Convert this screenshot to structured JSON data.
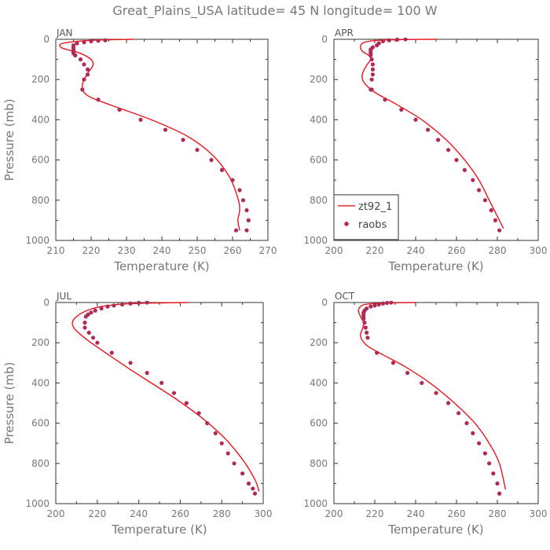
{
  "figure_title": "Great_Plains_USA   latitude= 45 N longitude= 100 W",
  "legend": {
    "line_label": "zt92_1",
    "dot_label": "raobs"
  },
  "colors": {
    "model": "#e8161c",
    "obs": "#b02a56"
  },
  "chart_data": [
    {
      "type": "line",
      "panel": "JAN",
      "xlabel": "Temperature (K)",
      "ylabel": "Pressure (mb)",
      "xlim": [
        210,
        270
      ],
      "ylim": [
        1000,
        0
      ],
      "xticks": [
        210,
        220,
        230,
        240,
        250,
        260,
        270
      ],
      "yticks": [
        0,
        200,
        400,
        600,
        800,
        1000
      ],
      "series": [
        {
          "name": "zt92_1",
          "kind": "line",
          "x": [
            232,
            220,
            212,
            211.5,
            214,
            217,
            220,
            220.5,
            219,
            217.5,
            219,
            226,
            237,
            247,
            254,
            259,
            261.5,
            262,
            261.5,
            262
          ],
          "y": [
            0,
            5,
            20,
            40,
            55,
            70,
            100,
            130,
            170,
            230,
            280,
            330,
            400,
            480,
            570,
            680,
            790,
            850,
            900,
            950
          ]
        },
        {
          "name": "raobs",
          "kind": "scatter",
          "x": [
            224,
            222,
            220,
            218,
            216,
            215,
            215,
            215,
            215,
            215,
            215.5,
            217,
            218,
            219,
            219,
            218,
            217.5,
            222,
            228,
            234,
            241,
            246,
            250,
            254,
            257,
            260,
            262,
            263,
            264,
            264.5,
            264,
            261
          ],
          "y": [
            5,
            7,
            10,
            15,
            20,
            30,
            40,
            50,
            60,
            70,
            80,
            100,
            125,
            150,
            175,
            200,
            250,
            300,
            350,
            400,
            450,
            500,
            550,
            600,
            650,
            700,
            750,
            800,
            850,
            900,
            950,
            950
          ]
        }
      ]
    },
    {
      "type": "line",
      "panel": "APR",
      "xlabel": "Temperature (K)",
      "ylabel": "",
      "xlim": [
        200,
        300
      ],
      "ylim": [
        1000,
        0
      ],
      "xticks": [
        200,
        220,
        240,
        260,
        280,
        300
      ],
      "yticks": [
        0,
        200,
        400,
        600,
        800,
        1000
      ],
      "series": [
        {
          "name": "zt92_1",
          "kind": "line",
          "x": [
            250,
            230,
            222,
            217,
            214,
            213,
            214,
            217,
            218,
            216,
            214,
            214,
            216,
            221,
            230,
            243,
            255,
            264,
            271,
            276,
            280,
            283
          ],
          "y": [
            0,
            2,
            5,
            10,
            20,
            40,
            60,
            80,
            100,
            130,
            170,
            200,
            230,
            270,
            320,
            400,
            500,
            600,
            700,
            800,
            880,
            940
          ]
        },
        {
          "name": "raobs",
          "kind": "scatter",
          "x": [
            235,
            231,
            227,
            224,
            222,
            221,
            219,
            218,
            218,
            218,
            218,
            218.5,
            219,
            219,
            219,
            218.5,
            218,
            218.5,
            225,
            233,
            240,
            246,
            251,
            256,
            260,
            264,
            268,
            271,
            274,
            277,
            279,
            281
          ],
          "y": [
            0,
            2,
            5,
            10,
            20,
            30,
            40,
            50,
            60,
            70,
            80,
            100,
            125,
            150,
            175,
            200,
            250,
            250,
            300,
            350,
            400,
            450,
            500,
            550,
            600,
            650,
            700,
            750,
            800,
            850,
            900,
            950
          ]
        }
      ]
    },
    {
      "type": "line",
      "panel": "JUL",
      "xlabel": "Temperature (K)",
      "ylabel": "Pressure (mb)",
      "xlim": [
        200,
        300
      ],
      "ylim": [
        1000,
        0
      ],
      "xticks": [
        200,
        220,
        240,
        260,
        280,
        300
      ],
      "yticks": [
        0,
        200,
        400,
        600,
        800,
        1000
      ],
      "series": [
        {
          "name": "zt92_1",
          "kind": "line",
          "x": [
            264,
            245,
            232,
            222,
            215,
            210,
            208,
            209,
            212,
            217,
            224,
            234,
            246,
            258,
            270,
            281,
            290,
            296,
            298
          ],
          "y": [
            0,
            3,
            8,
            20,
            40,
            70,
            100,
            130,
            160,
            200,
            250,
            320,
            400,
            480,
            570,
            670,
            780,
            880,
            940
          ]
        },
        {
          "name": "raobs",
          "kind": "scatter",
          "x": [
            244,
            240,
            236,
            232,
            228,
            225,
            222,
            219,
            217,
            215.5,
            214.5,
            214,
            214,
            216,
            218,
            220,
            227,
            236,
            244,
            251,
            257,
            263,
            269,
            273,
            277,
            280,
            283,
            286,
            290,
            293,
            295,
            296
          ],
          "y": [
            0,
            2,
            5,
            10,
            15,
            20,
            30,
            40,
            50,
            60,
            70,
            100,
            125,
            150,
            175,
            200,
            250,
            300,
            350,
            400,
            450,
            500,
            550,
            600,
            650,
            700,
            750,
            800,
            850,
            900,
            925,
            950
          ]
        }
      ]
    },
    {
      "type": "line",
      "panel": "OCT",
      "xlabel": "Temperature (K)",
      "ylabel": "",
      "xlim": [
        200,
        300
      ],
      "ylim": [
        1000,
        0
      ],
      "xticks": [
        200,
        220,
        240,
        260,
        280,
        300
      ],
      "yticks": [
        0,
        200,
        400,
        600,
        800,
        1000
      ],
      "series": [
        {
          "name": "zt92_1",
          "kind": "line",
          "x": [
            240,
            228,
            220,
            215,
            213,
            212,
            213,
            214.5,
            214,
            213,
            214,
            217,
            224,
            235,
            247,
            259,
            269,
            276,
            281,
            284
          ],
          "y": [
            0,
            2,
            5,
            10,
            20,
            40,
            70,
            100,
            130,
            160,
            190,
            220,
            260,
            320,
            400,
            500,
            600,
            700,
            800,
            930
          ]
        },
        {
          "name": "raobs",
          "kind": "scatter",
          "x": [
            228,
            226,
            224,
            222,
            220,
            218,
            216,
            215,
            214.5,
            214.5,
            214.5,
            214.5,
            215,
            215.5,
            216,
            216.5,
            221,
            229,
            236,
            243,
            250,
            256,
            261,
            265,
            268,
            271,
            274,
            276,
            278,
            280,
            281,
            281
          ],
          "y": [
            0,
            2,
            5,
            10,
            15,
            20,
            30,
            40,
            50,
            60,
            70,
            80,
            100,
            125,
            150,
            175,
            250,
            300,
            350,
            400,
            450,
            500,
            550,
            600,
            650,
            700,
            750,
            800,
            850,
            900,
            950,
            950
          ]
        }
      ]
    }
  ]
}
